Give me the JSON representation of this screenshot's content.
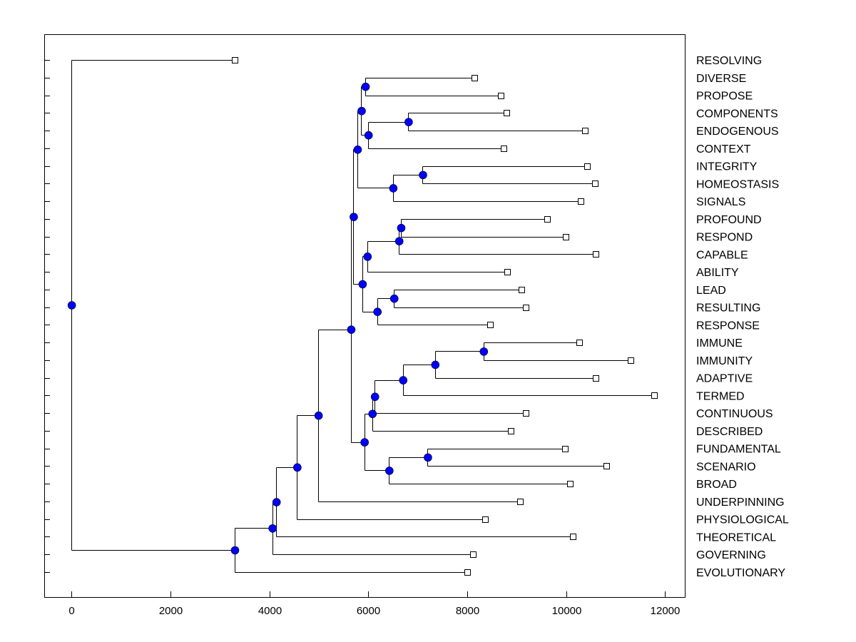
{
  "chart_data": {
    "type": "dendrogram",
    "title": "",
    "xlabel": "",
    "ylabel": "",
    "xlim": [
      -550,
      12400
    ],
    "x_ticks": [
      "0",
      "2000",
      "4000",
      "6000",
      "8000",
      "10000",
      "12000"
    ],
    "x_tick_values": [
      0,
      2000,
      4000,
      6000,
      8000,
      10000,
      12000
    ],
    "colors": {
      "node": "#0000ff",
      "leaf": "#ffffff",
      "line": "#000000"
    },
    "leaves": [
      {
        "id": "L1",
        "label": "RESOLVING",
        "value": 3300
      },
      {
        "id": "L2",
        "label": "DIVERSE",
        "value": 8150
      },
      {
        "id": "L3",
        "label": "PROPOSE",
        "value": 8680
      },
      {
        "id": "L4",
        "label": "COMPONENTS",
        "value": 8800
      },
      {
        "id": "L5",
        "label": "ENDOGENOUS",
        "value": 10380
      },
      {
        "id": "L6",
        "label": "CONTEXT",
        "value": 8740
      },
      {
        "id": "L7",
        "label": "INTEGRITY",
        "value": 10420
      },
      {
        "id": "L8",
        "label": "HOMEOSTASIS",
        "value": 10590
      },
      {
        "id": "L9",
        "label": "SIGNALS",
        "value": 10290
      },
      {
        "id": "L10",
        "label": "PROFOUND",
        "value": 9620
      },
      {
        "id": "L11",
        "label": "RESPOND",
        "value": 9990
      },
      {
        "id": "L12",
        "label": "CAPABLE",
        "value": 10600
      },
      {
        "id": "L13",
        "label": "ABILITY",
        "value": 8810
      },
      {
        "id": "L14",
        "label": "LEAD",
        "value": 9100
      },
      {
        "id": "L15",
        "label": "RESULTING",
        "value": 9190
      },
      {
        "id": "L16",
        "label": "RESPONSE",
        "value": 8460
      },
      {
        "id": "L17",
        "label": "IMMUNE",
        "value": 10260
      },
      {
        "id": "L18",
        "label": "IMMUNITY",
        "value": 11300
      },
      {
        "id": "L19",
        "label": "ADAPTIVE",
        "value": 10600
      },
      {
        "id": "L20",
        "label": "TERMED",
        "value": 11780
      },
      {
        "id": "L21",
        "label": "CONTINUOUS",
        "value": 9180
      },
      {
        "id": "L22",
        "label": "DESCRIBED",
        "value": 8880
      },
      {
        "id": "L23",
        "label": "FUNDAMENTAL",
        "value": 9980
      },
      {
        "id": "L24",
        "label": "SCENARIO",
        "value": 10810
      },
      {
        "id": "L25",
        "label": "BROAD",
        "value": 10080
      },
      {
        "id": "L26",
        "label": "UNDERPINNING",
        "value": 9070
      },
      {
        "id": "L27",
        "label": "PHYSIOLOGICAL",
        "value": 8360
      },
      {
        "id": "L28",
        "label": "THEORETICAL",
        "value": 10130
      },
      {
        "id": "L29",
        "label": "GOVERNING",
        "value": 8110
      },
      {
        "id": "L30",
        "label": "EVOLUTIONARY",
        "value": 8000
      }
    ],
    "merges": [
      {
        "id": "A",
        "value": 5940,
        "children": [
          "L2",
          "L3"
        ]
      },
      {
        "id": "B",
        "value": 6810,
        "children": [
          "L4",
          "L5"
        ]
      },
      {
        "id": "C",
        "value": 6000,
        "children": [
          "B",
          "L6"
        ]
      },
      {
        "id": "D",
        "value": 5860,
        "children": [
          "A",
          "C"
        ]
      },
      {
        "id": "E",
        "value": 7100,
        "children": [
          "L7",
          "L8"
        ]
      },
      {
        "id": "F",
        "value": 6500,
        "children": [
          "E",
          "L9"
        ]
      },
      {
        "id": "G",
        "value": 5780,
        "children": [
          "D",
          "F"
        ]
      },
      {
        "id": "H",
        "value": 6660,
        "children": [
          "L10",
          "L11"
        ]
      },
      {
        "id": "I",
        "value": 6620,
        "children": [
          "H",
          "L12"
        ]
      },
      {
        "id": "J",
        "value": 5980,
        "children": [
          "I",
          "L13"
        ]
      },
      {
        "id": "K",
        "value": 6520,
        "children": [
          "L14",
          "L15"
        ]
      },
      {
        "id": "L",
        "value": 6180,
        "children": [
          "K",
          "L16"
        ]
      },
      {
        "id": "M",
        "value": 5880,
        "children": [
          "J",
          "L"
        ]
      },
      {
        "id": "N",
        "value": 5700,
        "children": [
          "G",
          "M"
        ]
      },
      {
        "id": "O",
        "value": 8330,
        "children": [
          "L17",
          "L18"
        ]
      },
      {
        "id": "P",
        "value": 7350,
        "children": [
          "O",
          "L19"
        ]
      },
      {
        "id": "Q",
        "value": 6700,
        "children": [
          "P",
          "L20"
        ]
      },
      {
        "id": "R",
        "value": 6130,
        "children": [
          "Q",
          "L21"
        ]
      },
      {
        "id": "S",
        "value": 6080,
        "children": [
          "R",
          "L22"
        ]
      },
      {
        "id": "T",
        "value": 7200,
        "children": [
          "L23",
          "L24"
        ]
      },
      {
        "id": "U",
        "value": 6420,
        "children": [
          "T",
          "L25"
        ]
      },
      {
        "id": "V",
        "value": 5920,
        "children": [
          "S",
          "U"
        ]
      },
      {
        "id": "W",
        "value": 5650,
        "children": [
          "N",
          "V"
        ]
      },
      {
        "id": "X",
        "value": 4990,
        "children": [
          "W",
          "L26"
        ]
      },
      {
        "id": "Y",
        "value": 4560,
        "children": [
          "X",
          "L27"
        ]
      },
      {
        "id": "Z",
        "value": 4140,
        "children": [
          "Y",
          "L28"
        ]
      },
      {
        "id": "AA",
        "value": 4060,
        "children": [
          "Z",
          "L29"
        ]
      },
      {
        "id": "AB",
        "value": 3300,
        "children": [
          "AA",
          "L30"
        ]
      },
      {
        "id": "ROOT",
        "value": 0,
        "children": [
          "L1",
          "AB"
        ]
      }
    ]
  }
}
